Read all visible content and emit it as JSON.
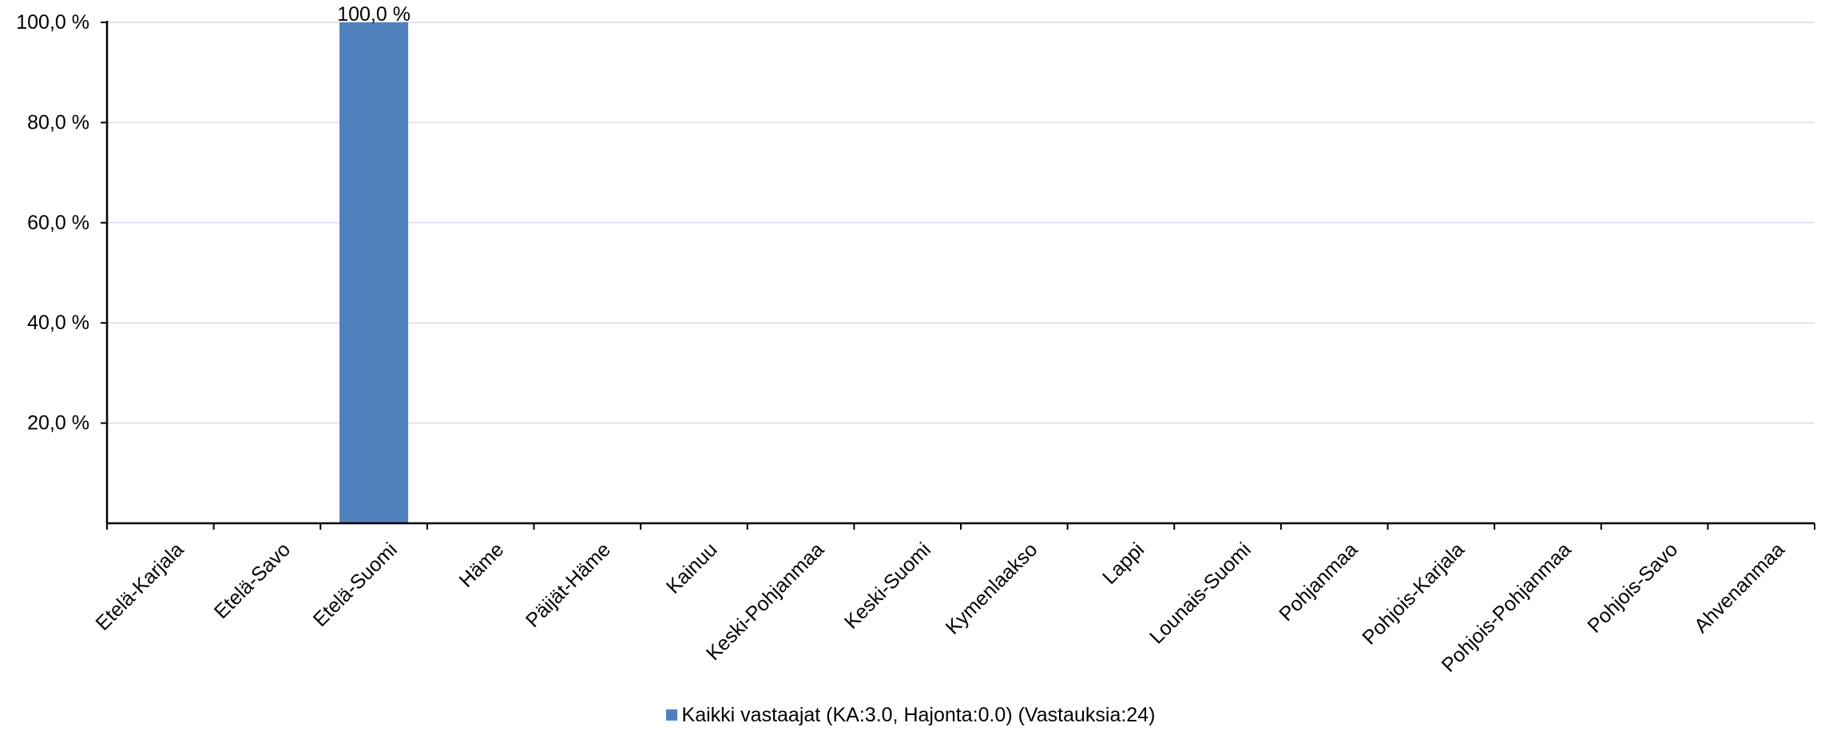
{
  "chart_data": {
    "type": "bar",
    "categories": [
      "Etelä-Karjala",
      "Etelä-Savo",
      "Etelä-Suomi",
      "Häme",
      "Päijät-Häme",
      "Kainuu",
      "Keski-Pohjanmaa",
      "Keski-Suomi",
      "Kymenlaakso",
      "Lappi",
      "Lounais-Suomi",
      "Pohjanmaa",
      "Pohjois-Karjala",
      "Pohjois-Pohjanmaa",
      "Pohjois-Savo",
      "Ahvenanmaa"
    ],
    "series": [
      {
        "name": "Kaikki vastaajat (KA:3.0, Hajonta:0.0) (Vastauksia:24)",
        "values": [
          0,
          0,
          100,
          0,
          0,
          0,
          0,
          0,
          0,
          0,
          0,
          0,
          0,
          0,
          0,
          0
        ],
        "data_labels": [
          "",
          "",
          "100,0 %",
          "",
          "",
          "",
          "",
          "",
          "",
          "",
          "",
          "",
          "",
          "",
          "",
          ""
        ],
        "color": "#4f81bd"
      }
    ],
    "y_ticks": [
      20,
      40,
      60,
      80,
      100
    ],
    "y_tick_labels": [
      "20,0 %",
      "40,0 %",
      "60,0 %",
      "80,0 %",
      "100,0 %"
    ],
    "ylim": [
      0,
      100
    ],
    "grid": true,
    "legend_position": "bottom-center",
    "title": "",
    "xlabel": "",
    "ylabel": ""
  }
}
